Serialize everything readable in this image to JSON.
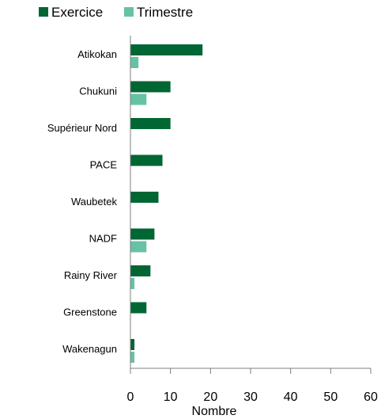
{
  "chart_data": {
    "type": "bar",
    "orientation": "horizontal",
    "categories": [
      "Atikokan",
      "Chukuni",
      "Supérieur Nord",
      "PACE",
      "Waubetek",
      "NADF",
      "Rainy River",
      "Greenstone",
      "Wakenagun"
    ],
    "series": [
      {
        "name": "Exercice",
        "color": "#006633",
        "values": [
          18,
          10,
          10,
          8,
          7,
          6,
          5,
          4,
          1
        ]
      },
      {
        "name": "Trimestre",
        "color": "#66c2a5",
        "values": [
          2,
          4,
          0,
          0,
          0,
          4,
          1,
          0,
          1
        ]
      }
    ],
    "xlabel": "Nombre",
    "xlim": [
      0,
      60
    ],
    "xticks": [
      "0",
      "10",
      "20",
      "30",
      "40",
      "50",
      "60"
    ],
    "grid": false,
    "legend_position": "top-left"
  }
}
